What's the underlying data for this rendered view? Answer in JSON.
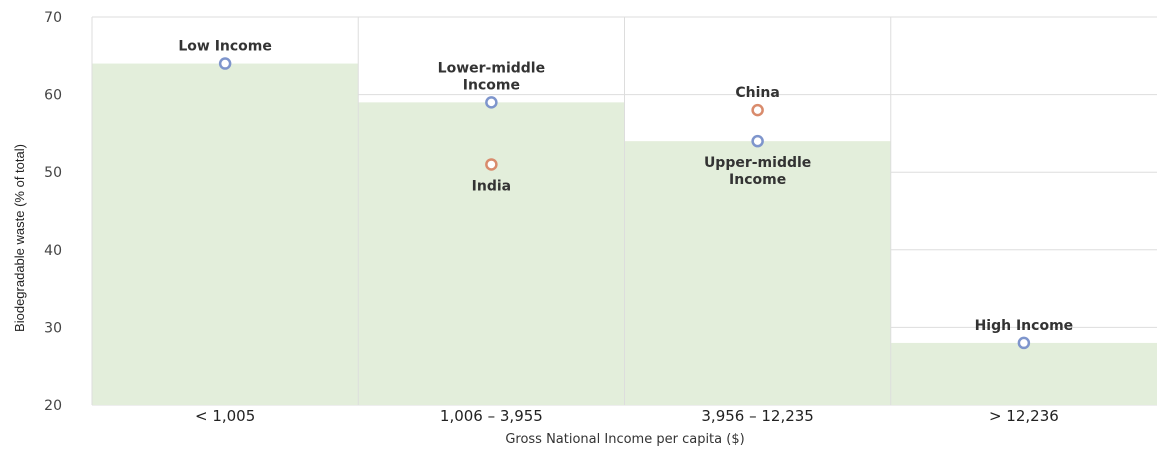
{
  "chart_data": {
    "type": "bar",
    "categories": [
      "< 1,005",
      "1,006 – 3,955",
      "3,956 – 12,235",
      "> 12,236"
    ],
    "values": [
      64,
      59,
      54,
      28
    ],
    "xlabel": "Gross National Income per capita ($)",
    "ylabel": "Biodegradable waste (% of total)",
    "ylim": [
      20,
      70
    ],
    "yticks": [
      20,
      30,
      40,
      50,
      60,
      70
    ],
    "grid": true,
    "colors": {
      "bar_fill": "#e3eedb",
      "grid": "#dddddd",
      "income_marker": "#7e95cc",
      "country_marker": "#d98b6c"
    },
    "points": [
      {
        "label_lines": [
          "Low Income"
        ],
        "category_index": 0,
        "value": 64,
        "series": "income",
        "label_pos": "above"
      },
      {
        "label_lines": [
          "Lower-middle",
          "Income"
        ],
        "category_index": 1,
        "value": 59,
        "series": "income",
        "label_pos": "above"
      },
      {
        "label_lines": [
          "India"
        ],
        "category_index": 1,
        "value": 51,
        "series": "country",
        "label_pos": "below"
      },
      {
        "label_lines": [
          "China"
        ],
        "category_index": 2,
        "value": 58,
        "series": "country",
        "label_pos": "above"
      },
      {
        "label_lines": [
          "Upper-middle",
          "Income"
        ],
        "category_index": 2,
        "value": 54,
        "series": "income",
        "label_pos": "below"
      },
      {
        "label_lines": [
          "High Income"
        ],
        "category_index": 3,
        "value": 28,
        "series": "income",
        "label_pos": "above"
      }
    ]
  }
}
